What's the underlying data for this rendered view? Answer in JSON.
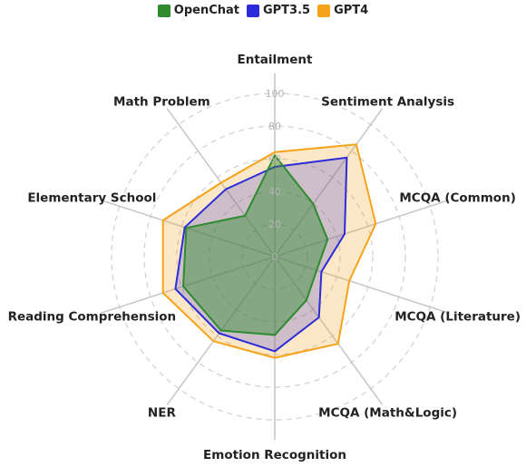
{
  "chart_data": {
    "type": "radar",
    "categories": [
      "Entailment",
      "Sentiment Analysis",
      "MCQA (Common)",
      "MCQA (Literature)",
      "MCQA (Math&Logic)",
      "Emotion Recognition",
      "NER",
      "Reading Comprehension",
      "Elementary School",
      "Math Problem"
    ],
    "radial_ticks": [
      "0",
      "20",
      "40",
      "60",
      "80",
      "100"
    ],
    "rlim": [
      0,
      100
    ],
    "series": [
      {
        "name": "OpenChat",
        "color": "#2e8b2e",
        "values": [
          62,
          40,
          34,
          27,
          33,
          48,
          56,
          59,
          57,
          31
        ]
      },
      {
        "name": "GPT3.5",
        "color": "#2b2bd9",
        "values": [
          55,
          75,
          45,
          30,
          46,
          58,
          58,
          64,
          58,
          51
        ]
      },
      {
        "name": "GPT4",
        "color": "#f5a31a",
        "values": [
          64,
          85,
          65,
          48,
          66,
          62,
          64,
          72,
          72,
          56
        ]
      }
    ],
    "grid": true,
    "legend_position": "top-center"
  }
}
